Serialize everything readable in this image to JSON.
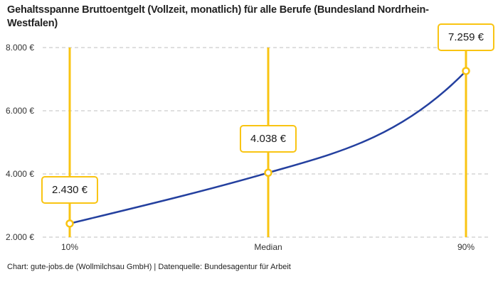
{
  "title": "Gehaltsspanne Bruttoentgelt (Vollzeit, monatlich) für alle Berufe (Bundesland Nordrhein-Westfalen)",
  "footer": "Chart: gute-jobs.de (Wollmilchsau GmbH) | Datenquelle: Bundesagentur für Arbeit",
  "chart_data": {
    "type": "line",
    "categories": [
      "10%",
      "Median",
      "90%"
    ],
    "values": [
      2430,
      4038,
      7259
    ],
    "values_formatted": [
      "2.430 €",
      "4.038 €",
      "7.259 €"
    ],
    "y_ticks": [
      2000,
      4000,
      6000,
      8000
    ],
    "y_tick_labels": [
      "2.000 €",
      "4.000 €",
      "6.000 €",
      "8.000 €"
    ],
    "ylim": [
      2000,
      8000
    ],
    "grid": "horizontal-dashed",
    "legend": "none",
    "colors": {
      "line": "#24409f",
      "marker": "#f9c412",
      "grid": "#cccccc",
      "axis_text": "#333333",
      "label_text": "#1a1a1a"
    }
  }
}
